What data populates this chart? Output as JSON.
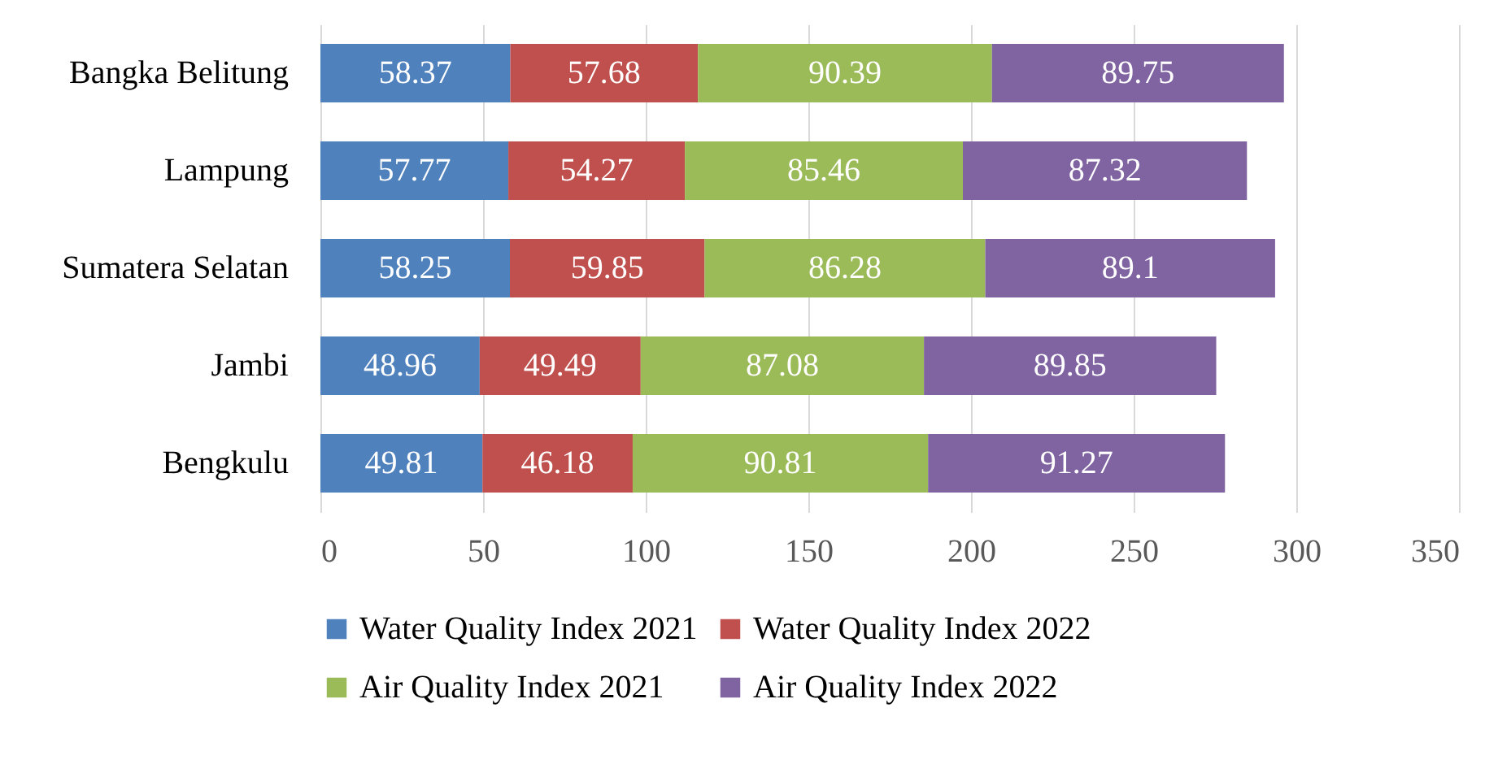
{
  "chart_data": {
    "type": "bar",
    "orientation": "horizontal",
    "stacked": true,
    "categories": [
      "Bangka Belitung",
      "Lampung",
      "Sumatera Selatan",
      "Jambi",
      "Bengkulu"
    ],
    "series": [
      {
        "name": "Water Quality Index 2021",
        "color": "#4f81bd",
        "values": [
          58.37,
          57.77,
          58.25,
          48.96,
          49.81
        ]
      },
      {
        "name": "Water Quality Index 2022",
        "color": "#c0504d",
        "values": [
          57.68,
          54.27,
          59.85,
          49.49,
          46.18
        ]
      },
      {
        "name": "Air Quality Index 2021",
        "color": "#9bbb59",
        "values": [
          90.39,
          85.46,
          86.28,
          87.08,
          90.81
        ]
      },
      {
        "name": "Air Quality Index 2022",
        "color": "#8064a2",
        "values": [
          89.75,
          87.32,
          89.1,
          89.85,
          91.27
        ]
      }
    ],
    "xlim": [
      0,
      350
    ],
    "xticks": [
      0,
      50,
      100,
      150,
      200,
      250,
      300,
      350
    ],
    "grid": "x",
    "legend": "bottom",
    "data_labels": true
  }
}
